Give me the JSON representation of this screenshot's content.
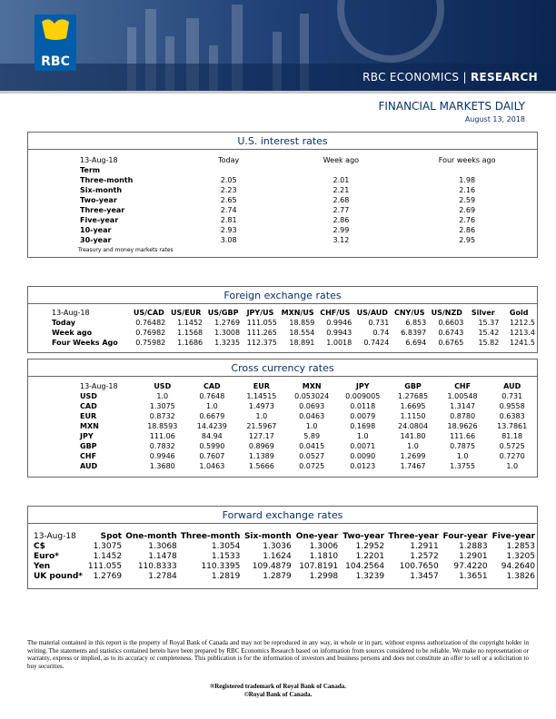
{
  "header": {
    "logo": "RBC",
    "unit": "RBC ECONOMICS",
    "separator": "|",
    "division": "RESEARCH",
    "title": "FINANCIAL MARKETS DAILY",
    "date": "August 13, 2018"
  },
  "us_rates": {
    "title": "U.S. interest rates",
    "header": [
      "13-Aug-18",
      "Today",
      "Week ago",
      "Four weeks ago"
    ],
    "term_label": "Term",
    "rows": [
      [
        "Three-month",
        "2.05",
        "2.01",
        "1.98"
      ],
      [
        "Six-month",
        "2.23",
        "2.21",
        "2.16"
      ],
      [
        "Two-year",
        "2.65",
        "2.68",
        "2.59"
      ],
      [
        "Three-year",
        "2.74",
        "2.77",
        "2.69"
      ],
      [
        "Five-year",
        "2.81",
        "2.86",
        "2.76"
      ],
      [
        "10-year",
        "2.93",
        "2.99",
        "2.86"
      ],
      [
        "30-year",
        "3.08",
        "3.12",
        "2.95"
      ]
    ],
    "note": "Treasury and money markets rates"
  },
  "fx": {
    "title": "Foreign exchange rates",
    "header": [
      "13-Aug-18",
      "US/CAD",
      "US/EUR",
      "US/GBP",
      "JPY/US",
      "MXN/US",
      "CHF/US",
      "US/AUD",
      "CNY/US",
      "US/NZD",
      "Silver",
      "Gold"
    ],
    "rows": [
      [
        "Today",
        "0.76482",
        "1.1452",
        "1.2769",
        "111.055",
        "18.859",
        "0.9946",
        "0.731",
        "6.853",
        "0.6603",
        "15.37",
        "1212.5"
      ],
      [
        "Week ago",
        "0.76982",
        "1.1568",
        "1.3008",
        "111.265",
        "18.554",
        "0.9943",
        "0.74",
        "6.8397",
        "0.6743",
        "15.42",
        "1213.4"
      ],
      [
        "Four Weeks Ago",
        "0.75982",
        "1.1686",
        "1.3235",
        "112.375",
        "18.891",
        "1.0018",
        "0.7424",
        "6.694",
        "0.6765",
        "15.82",
        "1241.5"
      ]
    ]
  },
  "cross": {
    "title": "Cross currency rates",
    "header": [
      "13-Aug-18",
      "USD",
      "CAD",
      "EUR",
      "MXN",
      "JPY",
      "GBP",
      "CHF",
      "AUD"
    ],
    "rows": [
      [
        "USD",
        "1.0",
        "0.7648",
        "1.14515",
        "0.053024",
        "0.009005",
        "1.27685",
        "1.00548",
        "0.731"
      ],
      [
        "CAD",
        "1.3075",
        "1.0",
        "1.4973",
        "0.0693",
        "0.0118",
        "1.6695",
        "1.3147",
        "0.9558"
      ],
      [
        "EUR",
        "0.8732",
        "0.6679",
        "1.0",
        "0.0463",
        "0.0079",
        "1.1150",
        "0.8780",
        "0.6383"
      ],
      [
        "MXN",
        "18.8593",
        "14.4239",
        "21.5967",
        "1.0",
        "0.1698",
        "24.0804",
        "18.9626",
        "13.7861"
      ],
      [
        "JPY",
        "111.06",
        "84.94",
        "127.17",
        "5.89",
        "1.0",
        "141.80",
        "111.66",
        "81.18"
      ],
      [
        "GBP",
        "0.7832",
        "0.5990",
        "0.8969",
        "0.0415",
        "0.0071",
        "1.0",
        "0.7875",
        "0.5725"
      ],
      [
        "CHF",
        "0.9946",
        "0.7607",
        "1.1389",
        "0.0527",
        "0.0090",
        "1.2699",
        "1.0",
        "0.7270"
      ],
      [
        "AUD",
        "1.3680",
        "1.0463",
        "1.5666",
        "0.0725",
        "0.0123",
        "1.7467",
        "1.3755",
        "1.0"
      ]
    ]
  },
  "forward": {
    "title": "Forward exchange rates",
    "header": [
      "13-Aug-18",
      "Spot",
      "One-month",
      "Three-month",
      "Six-month",
      "One-year",
      "Two-year",
      "Three-year",
      "Four-year",
      "Five-year"
    ],
    "rows": [
      [
        "C$",
        "1.3075",
        "1.3068",
        "1.3054",
        "1.3036",
        "1.3006",
        "1.2952",
        "1.2911",
        "1.2883",
        "1.2853"
      ],
      [
        "Euro*",
        "1.1452",
        "1.1478",
        "1.1533",
        "1.1624",
        "1.1810",
        "1.2201",
        "1.2572",
        "1.2901",
        "1.3205"
      ],
      [
        "Yen",
        "111.055",
        "110.8333",
        "110.3395",
        "109.4879",
        "107.8191",
        "104.2564",
        "100.7650",
        "97.4220",
        "94.2640"
      ],
      [
        "UK pound*",
        "1.2769",
        "1.2784",
        "1.2819",
        "1.2879",
        "1.2998",
        "1.3239",
        "1.3457",
        "1.3651",
        "1.3826"
      ]
    ]
  },
  "footer": {
    "disclaimer": "The material contained in this report is the property of Royal Bank of Canada and may not be reproduced in any way, in whole or in part, without express authorization of the copyright holder in writing. The statements and statistics contained herein have been prepared by RBC Economics Research based on information from sources considered to be reliable. We make no representation or warranty, express or implied, as to its accuracy or completeness. This publication is for the information of investors and business persons and does not constitute an offer to sell or a solicitation to buy securities.",
    "trademark": "®Registered trademark of Royal Bank of Canada.",
    "copyright": "©Royal Bank of Canada."
  }
}
